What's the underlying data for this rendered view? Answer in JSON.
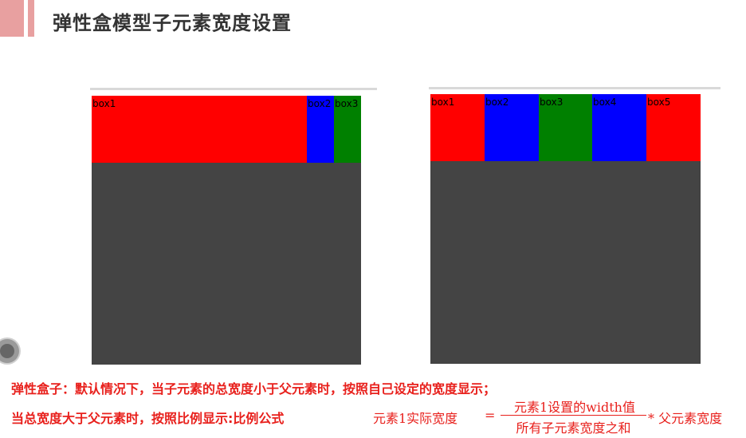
{
  "slide": {
    "title": "弹性盒模型子元素宽度设置",
    "accent_color": "#e8a0a0"
  },
  "left_demo": {
    "children": [
      {
        "label": "box1",
        "color": "#ff0000"
      },
      {
        "label": "box2",
        "color": "#0000ff"
      },
      {
        "label": "box3",
        "color": "#008000"
      }
    ]
  },
  "right_demo": {
    "children": [
      {
        "label": "box1",
        "color": "#ff0000"
      },
      {
        "label": "box2",
        "color": "#0000ff"
      },
      {
        "label": "box3",
        "color": "#008000"
      },
      {
        "label": "box4",
        "color": "#0000ff"
      },
      {
        "label": "box5",
        "color": "#ff0000"
      }
    ]
  },
  "notes": {
    "line1": "弹性盒子：默认情况下，当子元素的总宽度小于父元素时，按照自己设定的宽度显示；",
    "line2": "当总宽度大于父元素时，按照比例显示:比例公式",
    "color": "#e8201c"
  },
  "formula": {
    "lhs": "元素1实际宽度",
    "eq": "=",
    "numerator": "元素1设置的width值",
    "denominator": "所有子元素宽度之和",
    "rhs": "* 父元素宽度"
  }
}
